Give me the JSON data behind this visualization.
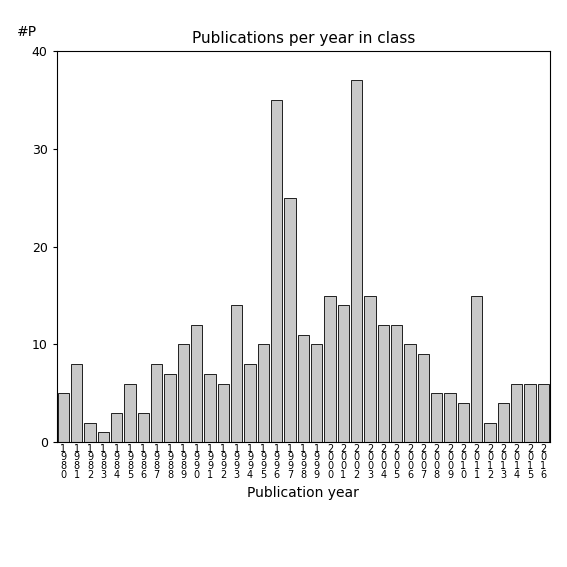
{
  "title": "Publications per year in class",
  "xlabel": "Publication year",
  "ylabel": "#P",
  "ylim": [
    0,
    40
  ],
  "yticks": [
    0,
    10,
    20,
    30,
    40
  ],
  "bar_color": "#c8c8c8",
  "bar_edgecolor": "#000000",
  "background_color": "#ffffff",
  "years": [
    "1980",
    "1981",
    "1982",
    "1983",
    "1984",
    "1985",
    "1986",
    "1987",
    "1988",
    "1989",
    "1990",
    "1991",
    "1992",
    "1993",
    "1994",
    "1995",
    "1996",
    "1997",
    "1998",
    "1999",
    "2000",
    "2001",
    "2002",
    "2003",
    "2004",
    "2005",
    "2006",
    "2007",
    "2008",
    "2009",
    "2010",
    "2011",
    "2012",
    "2013",
    "2014",
    "2015",
    "2016"
  ],
  "values": [
    5,
    8,
    2,
    1,
    3,
    6,
    3,
    8,
    7,
    10,
    12,
    7,
    6,
    14,
    8,
    10,
    35,
    25,
    11,
    10,
    15,
    14,
    37,
    15,
    12,
    12,
    10,
    9,
    5,
    5,
    4,
    15,
    2,
    4,
    6,
    6,
    6
  ],
  "title_fontsize": 11,
  "label_fontsize": 10,
  "tick_fontsize": 9,
  "xtick_fontsize": 7
}
